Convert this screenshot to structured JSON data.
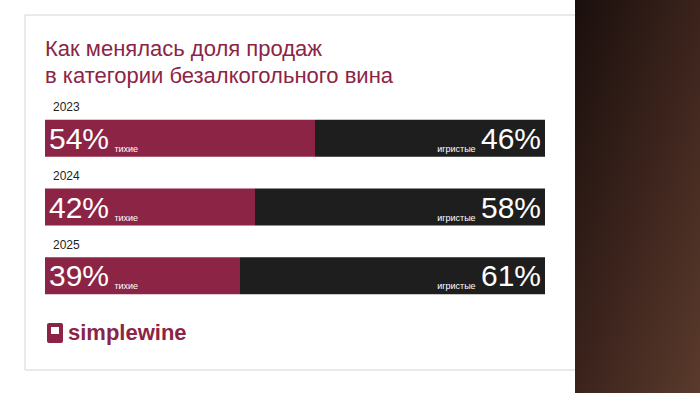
{
  "chart_data": {
    "type": "bar",
    "title": "Как менялась доля продаж\nв категории безалкогольного вина",
    "orientation": "horizontal",
    "stacked": true,
    "categories": [
      "2023",
      "2024",
      "2025"
    ],
    "series": [
      {
        "name": "тихие",
        "color": "#8c2445",
        "values": [
          54,
          42,
          39
        ],
        "value_labels": [
          "54%",
          "42%",
          "39%"
        ]
      },
      {
        "name": "игристые",
        "color": "#1e1e1e",
        "values": [
          46,
          58,
          61
        ],
        "value_labels": [
          "46%",
          "58%",
          "61%"
        ]
      }
    ],
    "xlim": [
      0,
      100
    ],
    "grid": false,
    "data_labels": true,
    "tick_labels": "y",
    "annotations": [
      "simplewine"
    ]
  }
}
